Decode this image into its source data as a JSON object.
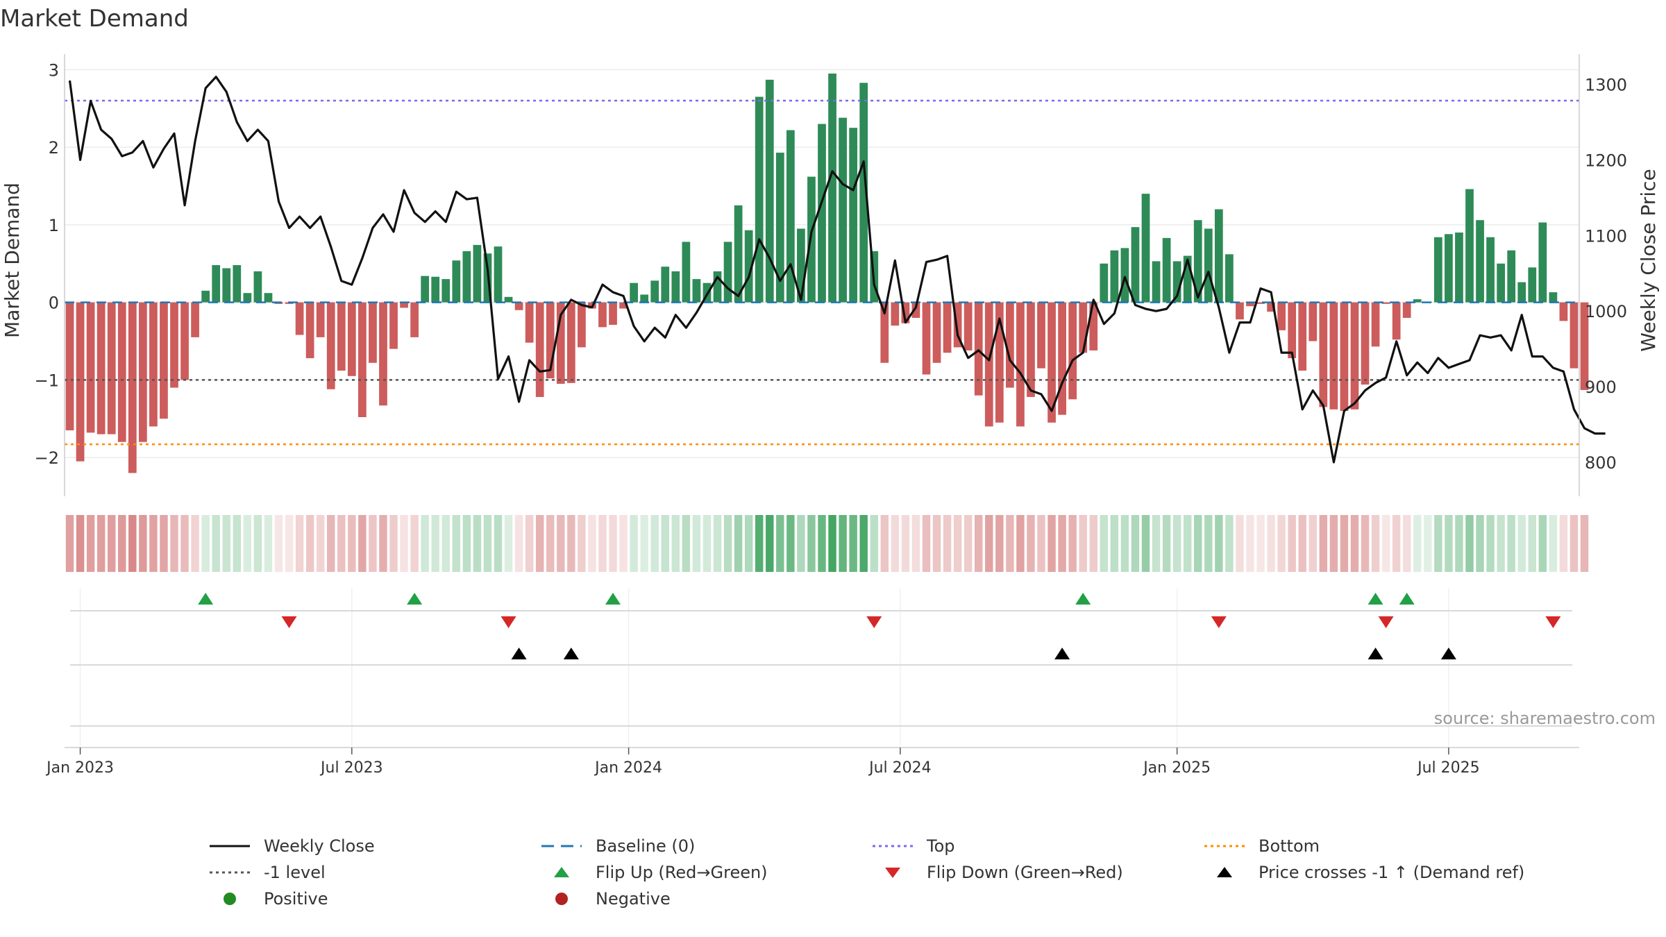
{
  "chart_data": {
    "type": "bar",
    "title": "Market Demand",
    "ylabel_left": "Market Demand",
    "ylabel_right": "Weekly Close Price",
    "ylim_left": [
      -2.5,
      3.2
    ],
    "ylim_right": [
      755,
      1340
    ],
    "yticks_left": [
      -2,
      -1,
      0,
      1,
      2,
      3
    ],
    "yticks_right": [
      800,
      900,
      1000,
      1100,
      1200,
      1300
    ],
    "start_week": "2022-12-26",
    "week_count": 145,
    "x_tick_labels": [
      {
        "label": "Jan 2023",
        "week": 1
      },
      {
        "label": "Jul 2023",
        "week": 27
      },
      {
        "label": "Jan 2024",
        "week": 53.5
      },
      {
        "label": "Jul 2024",
        "week": 79.5
      },
      {
        "label": "Jan 2025",
        "week": 106
      },
      {
        "label": "Jul 2025",
        "week": 132
      }
    ],
    "reference_lines": {
      "top": 2.6,
      "minus_one_level": -1,
      "bottom": -1.83,
      "baseline": 0
    },
    "demand": [
      -1.65,
      -2.05,
      -1.68,
      -1.7,
      -1.7,
      -1.8,
      -2.2,
      -1.8,
      -1.6,
      -1.5,
      -1.1,
      -1.0,
      -0.45,
      0.15,
      0.48,
      0.44,
      0.48,
      0.12,
      0.4,
      0.12,
      -0.02,
      -0.02,
      -0.42,
      -0.72,
      -0.45,
      -1.12,
      -0.88,
      -0.95,
      -1.48,
      -0.78,
      -1.33,
      -0.6,
      -0.07,
      -0.45,
      0.34,
      0.33,
      0.3,
      0.54,
      0.66,
      0.74,
      0.63,
      0.72,
      0.07,
      -0.1,
      -0.52,
      -1.22,
      -0.98,
      -1.05,
      -1.04,
      -0.58,
      -0.08,
      -0.32,
      -0.29,
      -0.08,
      0.25,
      0.1,
      0.28,
      0.46,
      0.4,
      0.78,
      0.3,
      0.25,
      0.4,
      0.78,
      1.25,
      0.93,
      2.65,
      2.87,
      1.93,
      2.22,
      0.95,
      1.62,
      2.3,
      2.95,
      2.38,
      2.25,
      2.83,
      0.66,
      -0.78,
      -0.3,
      -0.27,
      -0.2,
      -0.93,
      -0.78,
      -0.65,
      -0.58,
      -0.62,
      -1.2,
      -1.6,
      -1.55,
      -1.1,
      -1.6,
      -1.22,
      -0.85,
      -1.55,
      -1.45,
      -1.25,
      -0.65,
      -0.62,
      0.5,
      0.67,
      0.7,
      0.97,
      1.4,
      0.53,
      0.83,
      0.53,
      0.6,
      1.06,
      0.95,
      1.2,
      0.62,
      -0.22,
      -0.05,
      -0.02,
      -0.12,
      -0.36,
      -0.72,
      -0.88,
      -0.5,
      -1.35,
      -1.38,
      -1.4,
      -1.38,
      -1.06,
      -0.57,
      -0.02,
      -0.48,
      -0.2,
      0.04,
      0.01,
      0.84,
      0.88,
      0.9,
      1.46,
      1.06,
      0.84,
      0.5,
      0.67,
      0.26,
      0.45,
      1.03,
      0.13,
      -0.24,
      -0.85,
      -1.13
    ],
    "weekly_close": [
      1305,
      1200,
      1278,
      1240,
      1228,
      1205,
      1210,
      1225,
      1190,
      1215,
      1235,
      1140,
      1225,
      1295,
      1310,
      1290,
      1250,
      1225,
      1240,
      1225,
      1145,
      1110,
      1125,
      1110,
      1125,
      1085,
      1040,
      1035,
      1070,
      1110,
      1128,
      1105,
      1160,
      1130,
      1118,
      1132,
      1118,
      1158,
      1148,
      1150,
      1055,
      910,
      940,
      880,
      935,
      920,
      922,
      995,
      1015,
      1008,
      1005,
      1035,
      1025,
      1020,
      980,
      960,
      978,
      965,
      995,
      978,
      998,
      1022,
      1045,
      1030,
      1020,
      1045,
      1095,
      1070,
      1040,
      1062,
      1015,
      1105,
      1145,
      1185,
      1168,
      1160,
      1198,
      1035,
      997,
      1067,
      985,
      1005,
      1065,
      1068,
      1073,
      968,
      938,
      948,
      935,
      990,
      935,
      918,
      895,
      890,
      868,
      905,
      935,
      945,
      1015,
      983,
      997,
      1045,
      1008,
      1003,
      1000,
      1003,
      1020,
      1068,
      1018,
      1052,
      1005,
      945,
      985,
      985,
      1030,
      1025,
      945,
      945,
      870,
      895,
      875,
      800,
      868,
      878,
      895,
      905,
      912,
      960,
      915,
      932,
      918,
      938,
      925,
      930,
      935,
      968,
      965,
      968,
      948,
      995,
      940,
      940,
      925,
      920,
      870,
      845,
      838,
      838
    ],
    "flip_up_weeks": [
      13,
      33,
      52,
      97,
      125,
      128
    ],
    "flip_down_weeks": [
      21,
      42,
      77,
      110,
      126,
      142
    ],
    "price_cross_weeks": [
      43,
      48,
      95,
      125,
      132
    ],
    "source_text": "source: sharemaestro.com"
  },
  "legend": {
    "weekly_close": "Weekly Close",
    "baseline": "Baseline (0)",
    "top": "Top",
    "bottom": "Bottom",
    "minus_one": "-1 level",
    "flip_up": "Flip Up (Red→Green)",
    "flip_down": "Flip Down (Green→Red)",
    "price_cross": "Price crosses -1 ↑ (Demand ref)",
    "positive": "Positive",
    "negative": "Negative"
  },
  "colors": {
    "positive_bar": "#2e8b57",
    "negative_bar": "#cd5c5c",
    "price_line": "#111111",
    "baseline": "#1f77b4",
    "top_line": "#7b68ee",
    "bottom_line": "#ff8c00",
    "minus_one_line": "#555555",
    "flip_up": "#22a045",
    "flip_down": "#d62728",
    "price_cross": "#000000",
    "positive_dot": "#228b22",
    "negative_dot": "#b22222"
  }
}
